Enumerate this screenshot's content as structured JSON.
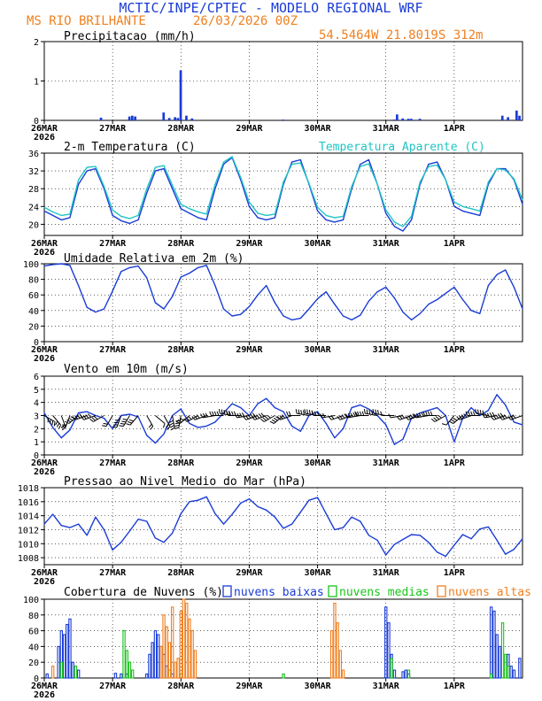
{
  "header": {
    "title": "MCTIC/INPE/CPTEC - MODELO REGIONAL WRF",
    "location": "MS RIO BRILHANTE",
    "run": "26/03/2026 00Z",
    "coords": "54.5464W 21.8019S 312m"
  },
  "colors": {
    "blue": "#1a3cd6",
    "cyan": "#22c4c4",
    "green": "#19c419",
    "orange": "#f08020",
    "black": "#000000"
  },
  "x_axis": {
    "labels": [
      "26MAR",
      "27MAR",
      "28MAR",
      "29MAR",
      "30MAR",
      "31MAR",
      "1APR"
    ],
    "year": "2026",
    "hours_total": 168
  },
  "chart_data": [
    {
      "id": "precip",
      "type": "bar",
      "title": "Precipitacao (mm/h)",
      "ylim": [
        0,
        2
      ],
      "yticks": [
        0,
        1,
        2
      ],
      "x_unit": "hours since 26MAR 00Z",
      "series": [
        {
          "name": "Precipitacao",
          "color": "#1a3cd6",
          "x": [
            20,
            30,
            31,
            32,
            42,
            44,
            46,
            47,
            48,
            50,
            52,
            84,
            123,
            124,
            126,
            128,
            129,
            132,
            161,
            163,
            166,
            167
          ],
          "values": [
            0.07,
            0.1,
            0.12,
            0.1,
            0.2,
            0.06,
            0.08,
            0.06,
            1.27,
            0.12,
            0.05,
            0.02,
            0.02,
            0.15,
            0.05,
            0.04,
            0.04,
            0.04,
            0.12,
            0.08,
            0.25,
            0.12
          ]
        }
      ]
    },
    {
      "id": "temp",
      "type": "line",
      "title": "2-m Temperatura (C)",
      "legend_right": "Temperatura Aparente (C)",
      "ylim": [
        17.5,
        36
      ],
      "yticks": [
        20,
        24,
        28,
        32,
        36
      ],
      "series": [
        {
          "name": "2-m Temperatura",
          "color": "#1a3cd6",
          "x": [
            0,
            3,
            6,
            9,
            12,
            15,
            18,
            21,
            24,
            27,
            30,
            33,
            36,
            39,
            42,
            45,
            48,
            51,
            54,
            57,
            60,
            63,
            66,
            69,
            72,
            75,
            78,
            81,
            84,
            87,
            90,
            93,
            96,
            99,
            102,
            105,
            108,
            111,
            114,
            117,
            120,
            123,
            126,
            129,
            132,
            135,
            138,
            141,
            144,
            147,
            150,
            153,
            156,
            159,
            162,
            165,
            168
          ],
          "values": [
            23,
            22,
            21,
            21.5,
            29,
            32,
            32.5,
            28,
            22,
            20.8,
            20.2,
            21,
            27,
            32,
            32.5,
            28,
            23.5,
            22.5,
            21.5,
            21,
            28,
            33.5,
            35,
            30,
            24,
            21.5,
            21,
            21.5,
            29,
            34,
            34.5,
            29,
            23,
            21,
            20.5,
            21,
            28,
            33.5,
            34.5,
            29,
            22.5,
            19.5,
            18.5,
            21,
            29,
            33.5,
            34,
            30,
            24,
            23,
            22.5,
            22,
            29,
            32.5,
            32.5,
            30,
            24.5
          ]
        },
        {
          "name": "Temperatura Aparente",
          "color": "#22c4c4",
          "x": [
            0,
            3,
            6,
            9,
            12,
            15,
            18,
            21,
            24,
            27,
            30,
            33,
            36,
            39,
            42,
            45,
            48,
            51,
            54,
            57,
            60,
            63,
            66,
            69,
            72,
            75,
            78,
            81,
            84,
            87,
            90,
            93,
            96,
            99,
            102,
            105,
            108,
            111,
            114,
            117,
            120,
            123,
            126,
            129,
            132,
            135,
            138,
            141,
            144,
            147,
            150,
            153,
            156,
            159,
            162,
            165,
            168
          ],
          "values": [
            23.8,
            22.8,
            22,
            22.3,
            30,
            32.8,
            33,
            28.5,
            23.2,
            21.8,
            21.3,
            22,
            28,
            32.8,
            33.2,
            28.8,
            24.5,
            23.5,
            22.8,
            22.3,
            29,
            34,
            35.2,
            30.5,
            25,
            22.5,
            22,
            22.3,
            29.5,
            33.5,
            33.8,
            29.2,
            23.8,
            22,
            21.5,
            21.8,
            28.5,
            33,
            33.6,
            29,
            23.2,
            20.5,
            19.5,
            21.8,
            29.5,
            33,
            33.3,
            30,
            25,
            24,
            23.5,
            23,
            29.5,
            32.5,
            32.2,
            30.2,
            25.5
          ]
        }
      ]
    },
    {
      "id": "umid",
      "type": "line",
      "title": "Umidade Relativa em 2m (%)",
      "ylim": [
        0,
        100
      ],
      "yticks": [
        0,
        20,
        40,
        60,
        80,
        100
      ],
      "series": [
        {
          "name": "Umidade Relativa",
          "color": "#1a3cd6",
          "x": [
            0,
            3,
            6,
            9,
            12,
            15,
            18,
            21,
            24,
            27,
            30,
            33,
            36,
            39,
            42,
            45,
            48,
            51,
            54,
            57,
            60,
            63,
            66,
            69,
            72,
            75,
            78,
            81,
            84,
            87,
            90,
            93,
            96,
            99,
            102,
            105,
            108,
            111,
            114,
            117,
            120,
            123,
            126,
            129,
            132,
            135,
            138,
            141,
            144,
            147,
            150,
            153,
            156,
            159,
            162,
            165,
            168
          ],
          "values": [
            97,
            99,
            100,
            98,
            72,
            44,
            38,
            42,
            65,
            90,
            95,
            97,
            82,
            50,
            42,
            58,
            83,
            88,
            95,
            98,
            72,
            42,
            33,
            35,
            45,
            60,
            72,
            50,
            33,
            28,
            30,
            42,
            55,
            64,
            48,
            33,
            28,
            34,
            52,
            64,
            70,
            56,
            38,
            28,
            36,
            48,
            54,
            62,
            70,
            54,
            40,
            36,
            72,
            86,
            92,
            70,
            42
          ]
        }
      ]
    },
    {
      "id": "vento",
      "type": "line",
      "title": "Vento em 10m (m/s)",
      "ylim": [
        0,
        6
      ],
      "yticks": [
        0,
        1,
        2,
        3,
        4,
        5,
        6
      ],
      "barbs_drawn_at": 3,
      "series": [
        {
          "name": "Velocidade",
          "color": "#1a3cd6",
          "x": [
            0,
            3,
            6,
            9,
            12,
            15,
            18,
            21,
            24,
            27,
            30,
            33,
            36,
            39,
            42,
            45,
            48,
            51,
            54,
            57,
            60,
            63,
            66,
            69,
            72,
            75,
            78,
            81,
            84,
            87,
            90,
            93,
            96,
            99,
            102,
            105,
            108,
            111,
            114,
            117,
            120,
            123,
            126,
            129,
            132,
            135,
            138,
            141,
            144,
            147,
            150,
            153,
            156,
            159,
            162,
            165,
            168
          ],
          "values": [
            3.2,
            2.1,
            1.3,
            1.9,
            3.2,
            3.3,
            3.0,
            2.8,
            2.0,
            3.0,
            3.1,
            2.9,
            1.5,
            0.9,
            1.6,
            3.0,
            3.5,
            2.4,
            2.1,
            2.2,
            2.5,
            3.2,
            3.9,
            3.6,
            3.0,
            3.9,
            4.3,
            3.6,
            3.3,
            2.2,
            1.8,
            3.0,
            3.3,
            2.4,
            1.3,
            2.0,
            3.6,
            3.8,
            3.5,
            3.0,
            2.3,
            0.8,
            1.2,
            2.8,
            3.2,
            3.4,
            3.6,
            3.0,
            1.0,
            2.8,
            3.6,
            3.0,
            3.4,
            4.6,
            3.8,
            2.5,
            2.3
          ]
        }
      ],
      "barb_directions_deg": [
        120,
        140,
        160,
        200,
        230,
        250,
        250,
        240,
        210,
        200,
        210,
        220,
        150,
        130,
        150,
        170,
        190,
        230,
        240,
        250,
        260,
        270,
        280,
        270,
        260,
        250,
        250,
        240,
        230,
        250,
        270,
        280,
        280,
        270,
        260,
        250,
        250,
        260,
        270,
        280,
        280,
        270,
        260,
        250,
        250,
        260,
        270,
        240,
        220,
        230,
        250,
        270,
        280,
        260,
        250,
        250,
        250
      ]
    },
    {
      "id": "pressao",
      "type": "line",
      "title": "Pressao ao Nivel Medio do Mar (hPa)",
      "ylim": [
        1007,
        1018
      ],
      "yticks": [
        1008,
        1010,
        1012,
        1014,
        1016,
        1018
      ],
      "series": [
        {
          "name": "Pressao",
          "color": "#1a3cd6",
          "x": [
            0,
            3,
            6,
            9,
            12,
            15,
            18,
            21,
            24,
            27,
            30,
            33,
            36,
            39,
            42,
            45,
            48,
            51,
            54,
            57,
            60,
            63,
            66,
            69,
            72,
            75,
            78,
            81,
            84,
            87,
            90,
            93,
            96,
            99,
            102,
            105,
            108,
            111,
            114,
            117,
            120,
            123,
            126,
            129,
            132,
            135,
            138,
            141,
            144,
            147,
            150,
            153,
            156,
            159,
            162,
            165,
            168
          ],
          "values": [
            1012.8,
            1014.2,
            1012.6,
            1012.3,
            1012.8,
            1011.2,
            1013.8,
            1012.0,
            1009.1,
            1010.2,
            1011.8,
            1013.5,
            1013.2,
            1010.8,
            1010.2,
            1011.5,
            1014.3,
            1016.0,
            1016.2,
            1016.7,
            1014.3,
            1012.8,
            1014.2,
            1015.8,
            1016.4,
            1015.3,
            1014.8,
            1013.8,
            1012.2,
            1012.8,
            1014.5,
            1016.2,
            1016.6,
            1014.3,
            1012.0,
            1012.3,
            1013.8,
            1013.2,
            1011.2,
            1010.5,
            1008.4,
            1009.9,
            1010.6,
            1011.3,
            1011.2,
            1010.2,
            1008.8,
            1008.2,
            1009.8,
            1011.3,
            1010.7,
            1012.1,
            1012.4,
            1010.5,
            1008.5,
            1009.2,
            1010.7
          ]
        }
      ]
    },
    {
      "id": "nuvens",
      "type": "bar",
      "title": "Cobertura de Nuvens (%)",
      "ylim": [
        0,
        100
      ],
      "yticks": [
        0,
        20,
        40,
        60,
        80,
        100
      ],
      "legend": [
        "nuvens baixas",
        "nuvens medias",
        "nuvens altas"
      ],
      "series": [
        {
          "name": "nuvens baixas",
          "color": "#1a3cd6",
          "x": [
            1,
            5,
            6,
            7,
            8,
            9,
            10,
            12,
            25,
            27,
            29,
            36,
            37,
            38,
            39,
            40,
            41,
            42,
            43,
            45,
            120,
            121,
            122,
            123,
            126,
            127,
            128,
            157,
            158,
            159,
            160,
            163,
            164,
            165,
            167
          ],
          "values": [
            5,
            40,
            60,
            55,
            68,
            75,
            20,
            10,
            6,
            5,
            5,
            5,
            30,
            45,
            60,
            55,
            40,
            30,
            15,
            5,
            90,
            70,
            30,
            10,
            8,
            10,
            5,
            90,
            85,
            55,
            40,
            30,
            15,
            10,
            25
          ]
        },
        {
          "name": "nuvens medias",
          "color": "#19c419",
          "x": [
            6,
            11,
            28,
            29,
            30,
            31,
            44,
            48,
            84,
            122,
            128,
            157,
            161,
            162,
            163
          ],
          "values": [
            20,
            15,
            60,
            35,
            20,
            10,
            10,
            5,
            5,
            25,
            10,
            5,
            70,
            30,
            15
          ]
        },
        {
          "name": "nuvens altas",
          "color": "#f08020",
          "x": [
            3,
            41,
            42,
            43,
            44,
            45,
            46,
            47,
            48,
            49,
            50,
            51,
            52,
            53,
            101,
            102,
            103,
            104,
            105
          ],
          "values": [
            15,
            40,
            80,
            65,
            45,
            90,
            20,
            25,
            85,
            100,
            95,
            75,
            60,
            35,
            60,
            95,
            70,
            35,
            10
          ]
        }
      ]
    }
  ]
}
